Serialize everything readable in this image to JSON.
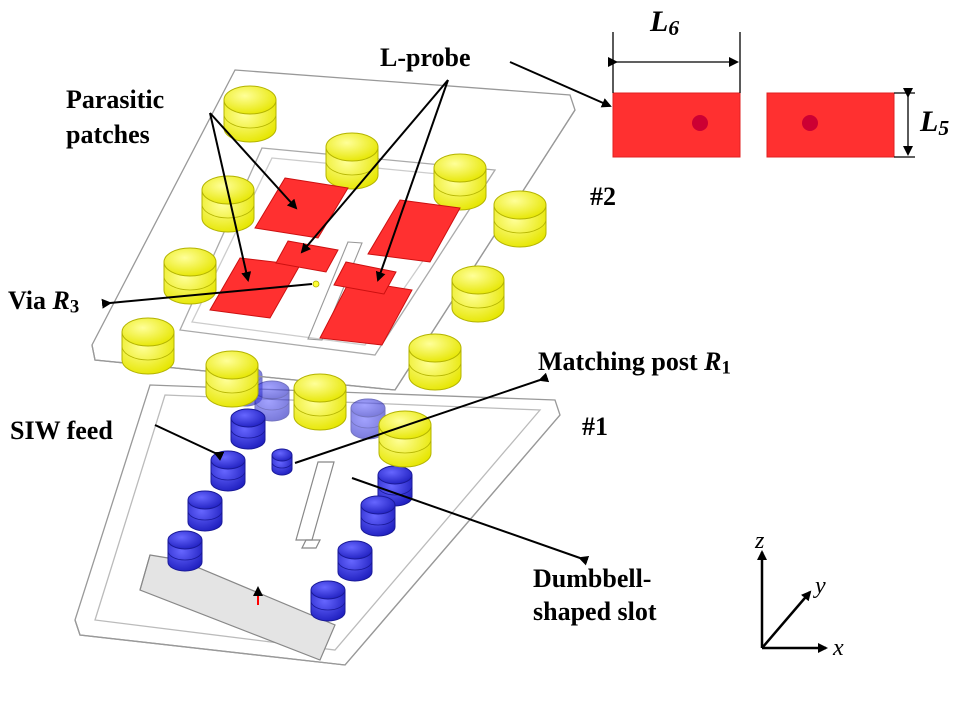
{
  "labels": {
    "parasitic_line1": "Parasitic",
    "parasitic_line2": "patches",
    "l_probe": "L-probe",
    "via": "Via ",
    "via_sym": "R",
    "via_sub": "3",
    "layer2": "#2",
    "layer1": "#1",
    "siw_feed": "SIW feed",
    "matching": "Matching post ",
    "matching_sym": "R",
    "matching_sub": "1",
    "dumbbell_line1": "Dumbbell-",
    "dumbbell_line2": "shaped slot",
    "l6_sym": "L",
    "l6_sub": "6",
    "l5_sym": "L",
    "l5_sub": "5"
  },
  "axes": {
    "z": "z",
    "y": "y",
    "x": "x"
  },
  "colors": {
    "patch": "#ff3030",
    "post_yellow": "#ffff33",
    "post_blue": "#3333dd",
    "via_dot": "#cc0033",
    "outline": "#999999"
  }
}
